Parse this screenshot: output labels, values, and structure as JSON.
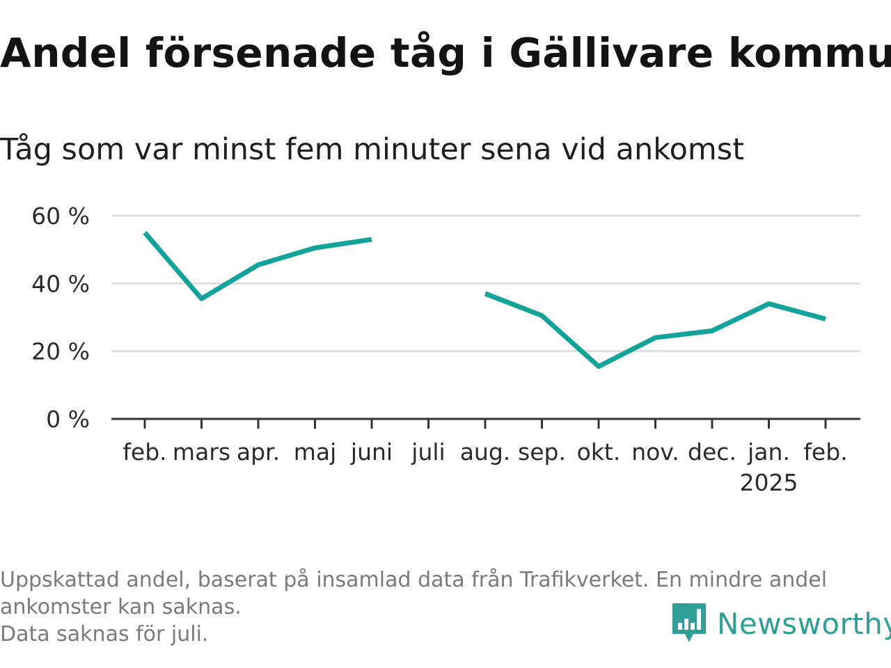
{
  "title": "Andel försenade tåg i Gällivare kommun",
  "subtitle": "Tåg som var minst fem minuter sena vid ankomst",
  "footnote": {
    "line1": "Uppskattad andel, baserat på insamlad data från Trafikverket. En mindre andel",
    "line2": "ankomster kan saknas.",
    "line3": "Data saknas för juli."
  },
  "logo": {
    "text": "Newsworthy",
    "icon": "newsworthy-bar-chart-icon"
  },
  "colors": {
    "line": "#14a39a",
    "grid": "#dddddd",
    "axis": "#333333",
    "logo": "#2f9e94"
  },
  "chart_data": {
    "type": "line",
    "title": "Andel försenade tåg i Gällivare kommun",
    "subtitle": "Tåg som var minst fem minuter sena vid ankomst",
    "categories": [
      "feb.",
      "mars",
      "apr.",
      "maj",
      "juni",
      "juli",
      "aug.",
      "sep.",
      "okt.",
      "nov.",
      "dec.",
      "jan.",
      "feb."
    ],
    "category_sublabels": [
      "",
      "",
      "",
      "",
      "",
      "",
      "",
      "",
      "",
      "",
      "",
      "2025",
      ""
    ],
    "series": [
      {
        "values": [
          55,
          35.5,
          45.5,
          50.5,
          53,
          null,
          37,
          30.5,
          15.5,
          24,
          26,
          34,
          29.5
        ]
      }
    ],
    "ylim": [
      0,
      60
    ],
    "yticks": [
      0,
      20,
      40,
      60
    ],
    "ytick_labels": [
      "0 %",
      "20 %",
      "40 %",
      "60 %"
    ],
    "grid": true,
    "legend": "none"
  }
}
